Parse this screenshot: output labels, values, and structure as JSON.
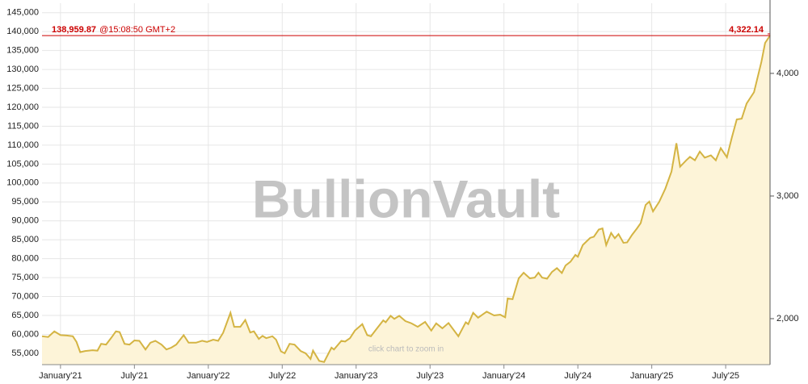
{
  "chart_data": {
    "type": "line",
    "watermark": "BullionVault",
    "hint": "click chart to zoom in",
    "x": [
      -1.5,
      -1.0,
      -0.5,
      0,
      0.5,
      1.0,
      1.3,
      1.6,
      2.0,
      2.6,
      3.0,
      3.3,
      3.7,
      4.1,
      4.5,
      4.8,
      5.2,
      5.6,
      6.0,
      6.4,
      6.9,
      7.3,
      7.7,
      8.2,
      8.6,
      9.0,
      9.4,
      10.0,
      10.4,
      11.0,
      11.5,
      11.9,
      12.4,
      12.8,
      13.2,
      13.8,
      14.1,
      14.6,
      15.0,
      15.4,
      15.7,
      16.1,
      16.4,
      16.7,
      17.2,
      17.5,
      17.9,
      18.2,
      18.6,
      19.0,
      19.5,
      19.9,
      20.3,
      20.5,
      21.0,
      21.4,
      22.0,
      22.2,
      22.8,
      23.1,
      23.5,
      23.9,
      24.5,
      24.9,
      25.2,
      25.6,
      26.2,
      26.4,
      26.8,
      27.1,
      27.5,
      28.0,
      28.5,
      29.0,
      29.6,
      30.1,
      30.5,
      31.0,
      31.5,
      32.3,
      32.9,
      33.1,
      33.5,
      33.9,
      34.6,
      35.2,
      35.7,
      36.1,
      36.3,
      36.7,
      36.9,
      37.2,
      37.6,
      38.1,
      38.5,
      38.8,
      39.1,
      39.5,
      39.9,
      40.3,
      40.7,
      41.0,
      41.4,
      41.8,
      42.0,
      42.4,
      43.0,
      43.3,
      43.7,
      44.0,
      44.3,
      44.7,
      45.0,
      45.3,
      45.7,
      46.0,
      46.4,
      46.8,
      47.1,
      47.5,
      47.8,
      48.1,
      48.6,
      49.1,
      49.6,
      50.0,
      50.3,
      50.8,
      51.1,
      51.5,
      51.9,
      52.3,
      52.8,
      53.2,
      53.6,
      54.1,
      54.5,
      54.9,
      55.3,
      55.7,
      56.3,
      56.9,
      57.2,
      57.6
    ],
    "series": [
      {
        "color": "#d4b443",
        "fill": "#fdf4d8",
        "values": [
          59500,
          59300,
          60800,
          59800,
          59700,
          59500,
          58000,
          55300,
          55600,
          55800,
          55700,
          57500,
          57300,
          59000,
          60800,
          60600,
          57500,
          57300,
          58400,
          58300,
          56000,
          57800,
          58300,
          57300,
          56000,
          56500,
          57300,
          59800,
          57800,
          57800,
          58300,
          58000,
          58600,
          58300,
          60400,
          65700,
          62000,
          62000,
          63800,
          60500,
          60800,
          58800,
          59600,
          59000,
          59500,
          58600,
          55500,
          55000,
          57500,
          57300,
          55600,
          55000,
          53500,
          55700,
          53000,
          52700,
          56500,
          56000,
          58300,
          58100,
          59000,
          61000,
          62700,
          59800,
          59500,
          61200,
          63700,
          63200,
          64900,
          64100,
          64900,
          63500,
          62900,
          62000,
          63300,
          61000,
          62900,
          61600,
          63000,
          59500,
          63200,
          62700,
          65700,
          64400,
          66000,
          65000,
          65200,
          64500,
          69500,
          69300,
          71500,
          74800,
          76300,
          74800,
          75000,
          76300,
          75000,
          74700,
          76500,
          77500,
          76200,
          78200,
          79200,
          81000,
          80500,
          83600,
          85500,
          85800,
          87700,
          88000,
          83600,
          86800,
          85400,
          86500,
          84200,
          84300,
          86300,
          88000,
          89400,
          94200,
          95100,
          92500,
          95000,
          98500,
          103000,
          110500,
          104300,
          106000,
          106900,
          106000,
          108300,
          106700,
          107300,
          106000,
          109200,
          106800,
          112000,
          116800,
          117000,
          121000,
          124000,
          132000,
          137000,
          138959.87
        ]
      }
    ],
    "xlim": [
      -1.5,
      57.6
    ],
    "xticks": [
      {
        "value": 0,
        "label": "January'21"
      },
      {
        "value": 6,
        "label": "July'21"
      },
      {
        "value": 12,
        "label": "January'22"
      },
      {
        "value": 18,
        "label": "July'22"
      },
      {
        "value": 24,
        "label": "January'23"
      },
      {
        "value": 30,
        "label": "July'23"
      },
      {
        "value": 36,
        "label": "January'24"
      },
      {
        "value": 42,
        "label": "July'24"
      },
      {
        "value": 48,
        "label": "January'25"
      },
      {
        "value": 54,
        "label": "July'25"
      }
    ],
    "ylim": [
      52000,
      147500
    ],
    "yticks": [
      {
        "value": 55000,
        "label": "55,000"
      },
      {
        "value": 60000,
        "label": "60,000"
      },
      {
        "value": 65000,
        "label": "65,000"
      },
      {
        "value": 70000,
        "label": "70,000"
      },
      {
        "value": 75000,
        "label": "75,000"
      },
      {
        "value": 80000,
        "label": "80,000"
      },
      {
        "value": 85000,
        "label": "85,000"
      },
      {
        "value": 90000,
        "label": "90,000"
      },
      {
        "value": 95000,
        "label": "95,000"
      },
      {
        "value": 100000,
        "label": "100,000"
      },
      {
        "value": 105000,
        "label": "105,000"
      },
      {
        "value": 110000,
        "label": "110,000"
      },
      {
        "value": 115000,
        "label": "115,000"
      },
      {
        "value": 120000,
        "label": "120,000"
      },
      {
        "value": 125000,
        "label": "125,000"
      },
      {
        "value": 130000,
        "label": "130,000"
      },
      {
        "value": 135000,
        "label": "135,000"
      },
      {
        "value": 140000,
        "label": "140,000"
      },
      {
        "value": 145000,
        "label": "145,000"
      }
    ],
    "y2lim": [
      1625,
      4572
    ],
    "y2ticks": [
      {
        "value": 2000,
        "label": "2,000"
      },
      {
        "value": 3000,
        "label": "3,000"
      },
      {
        "value": 4000,
        "label": "4,000"
      }
    ],
    "grid": true,
    "reference_line": {
      "value": 138959.87,
      "label": "138,959.87",
      "time": "@15:08:50 GMT+2",
      "color": "#cc0000",
      "right": {
        "value": 4322.14,
        "label": "4,322.14"
      }
    }
  }
}
